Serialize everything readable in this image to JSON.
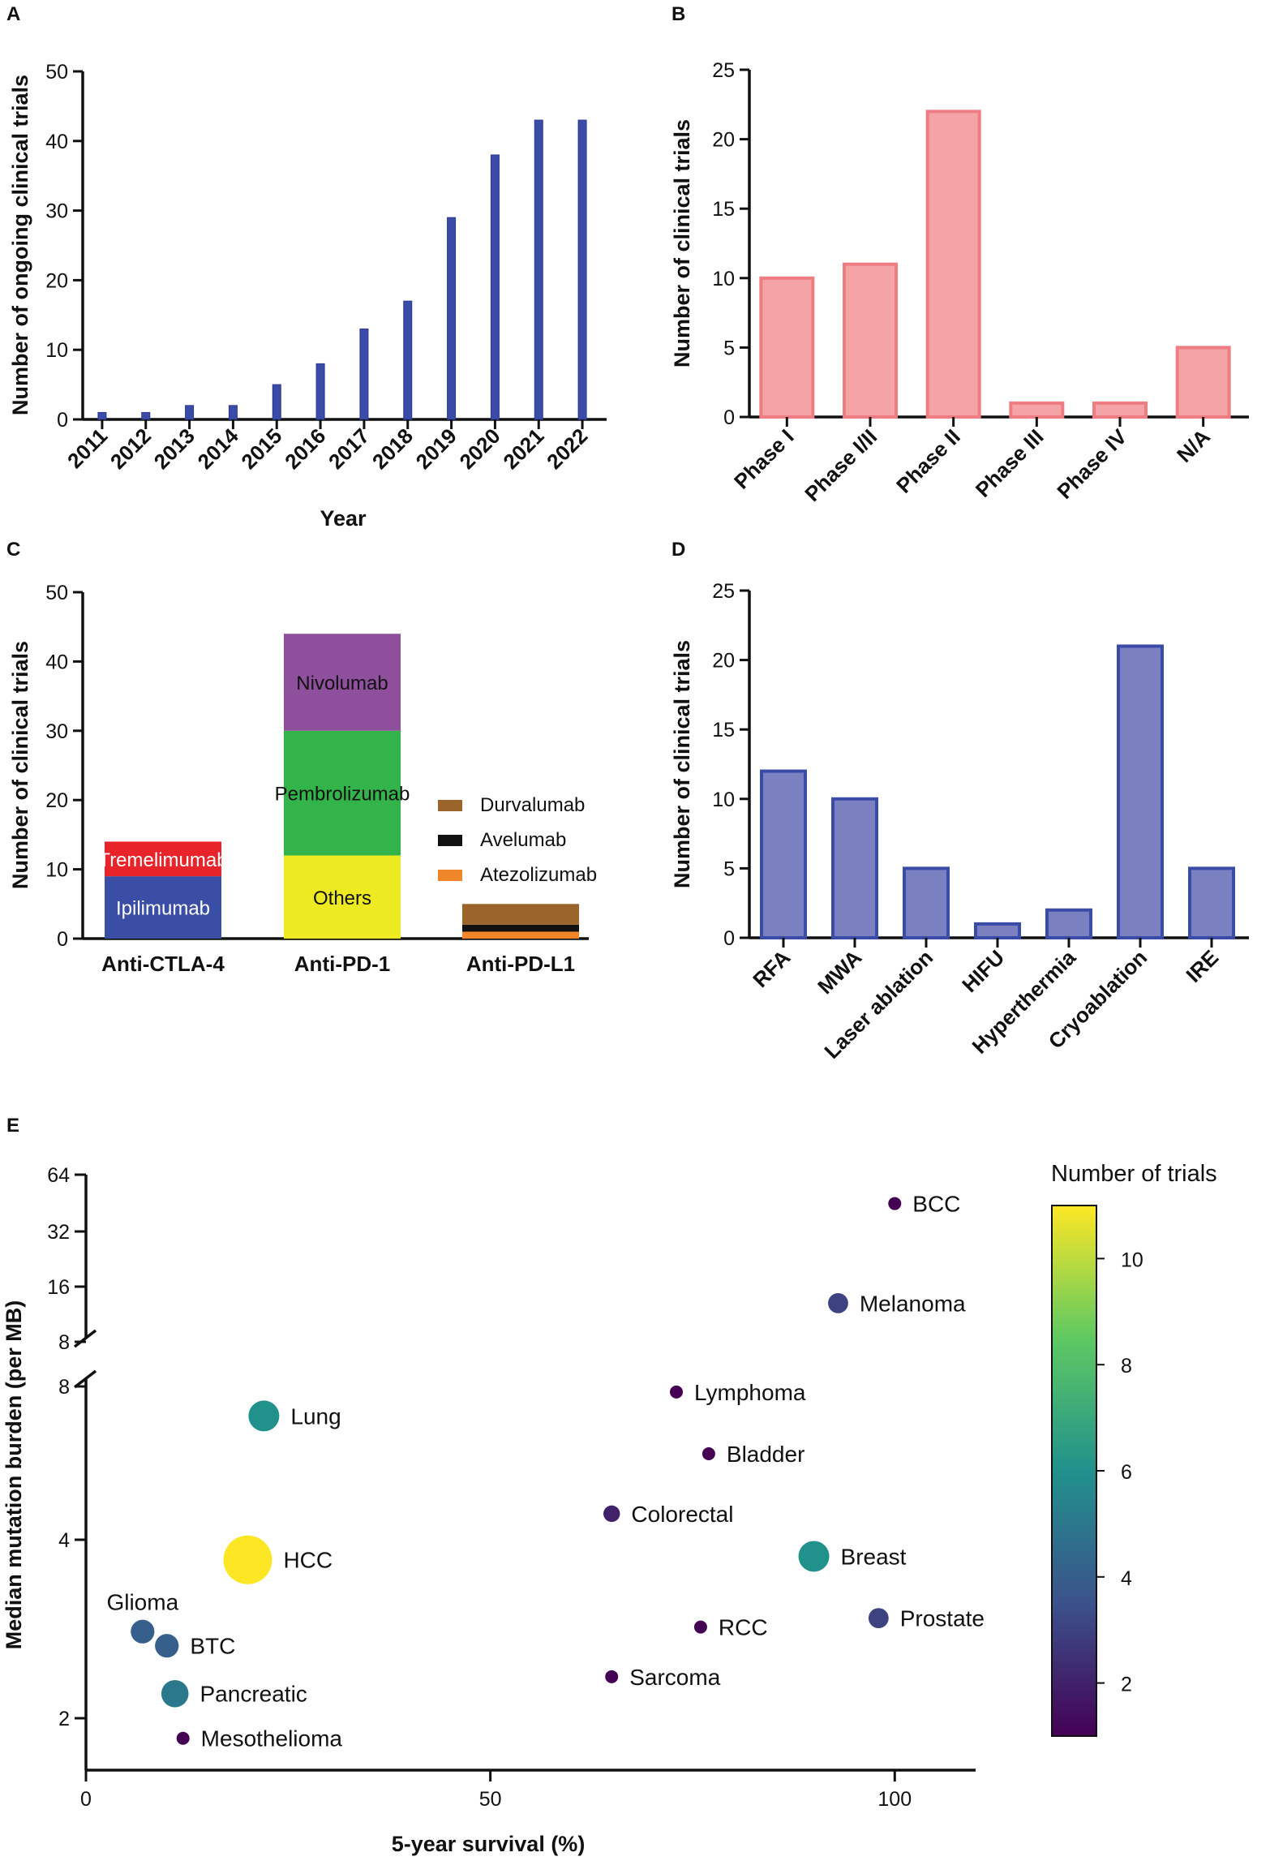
{
  "panels": {
    "a": "A",
    "b": "B",
    "c": "C",
    "d": "D",
    "e": "E"
  },
  "chart_data": [
    {
      "id": "A",
      "type": "bar",
      "title": "",
      "xlabel": "Year",
      "ylabel": "Number of ongoing clinical trials",
      "categories": [
        "2011",
        "2012",
        "2013",
        "2014",
        "2015",
        "2016",
        "2017",
        "2018",
        "2019",
        "2020",
        "2021",
        "2022"
      ],
      "values": [
        1,
        1,
        2,
        2,
        5,
        8,
        13,
        17,
        29,
        38,
        43,
        43
      ],
      "ylim": [
        0,
        50
      ],
      "yticks": [
        "0",
        "10",
        "20",
        "30",
        "40",
        "50"
      ],
      "color": "#3a4ba8"
    },
    {
      "id": "B",
      "type": "bar",
      "title": "",
      "xlabel": "",
      "ylabel": "Number of clinical trials",
      "categories": [
        "Phase I",
        "Phase I/II",
        "Phase II",
        "Phase III",
        "Phase IV",
        "N/A"
      ],
      "values": [
        10,
        11,
        22,
        1,
        1,
        5
      ],
      "ylim": [
        0,
        25
      ],
      "yticks": [
        "0",
        "5",
        "10",
        "15",
        "20",
        "25"
      ],
      "color": "#f4a3a6",
      "edge_color": "#ee7d83"
    },
    {
      "id": "C",
      "type": "bar",
      "stacked": true,
      "title": "",
      "xlabel": "",
      "ylabel": "Number of clinical trials",
      "categories": [
        "Anti-CTLA-4",
        "Anti-PD-1",
        "Anti-PD-L1"
      ],
      "ylim": [
        0,
        50
      ],
      "yticks": [
        "0",
        "10",
        "20",
        "30",
        "40",
        "50"
      ],
      "stacks": [
        {
          "category": "Anti-CTLA-4",
          "segments": [
            {
              "name": "Ipilimumab",
              "value": 9,
              "color": "#3b4ea5",
              "label_color": "white"
            },
            {
              "name": "Tremelimumab",
              "value": 5,
              "color": "#e8232a",
              "label_color": "white"
            }
          ]
        },
        {
          "category": "Anti-PD-1",
          "segments": [
            {
              "name": "Others",
              "value": 12,
              "color": "#eeea22",
              "label_color": "black"
            },
            {
              "name": "Pembrolizumab",
              "value": 18,
              "color": "#32b44a",
              "label_color": "black"
            },
            {
              "name": "Nivolumab",
              "value": 14,
              "color": "#8e4f9d",
              "label_color": "black"
            }
          ]
        },
        {
          "category": "Anti-PD-L1",
          "segments": [
            {
              "name": "Atezolizumab",
              "value": 1,
              "color": "#f0862a"
            },
            {
              "name": "Avelumab",
              "value": 1,
              "color": "#111111"
            },
            {
              "name": "Durvalumab",
              "value": 3,
              "color": "#9a642b"
            }
          ]
        }
      ],
      "legend": [
        "Durvalumab",
        "Avelumab",
        "Atezolizumab"
      ],
      "legend_colors": [
        "#9a642b",
        "#111111",
        "#f0862a"
      ]
    },
    {
      "id": "D",
      "type": "bar",
      "title": "",
      "xlabel": "",
      "ylabel": "Number of clinical trials",
      "categories": [
        "RFA",
        "MWA",
        "Laser ablation",
        "HIFU",
        "Hyperthermia",
        "Cryoablation",
        "IRE"
      ],
      "values": [
        12,
        10,
        5,
        1,
        2,
        21,
        5
      ],
      "ylim": [
        0,
        25
      ],
      "yticks": [
        "0",
        "5",
        "10",
        "15",
        "20",
        "25"
      ],
      "color": "#7b80c0",
      "edge_color": "#3a4ba8"
    },
    {
      "id": "E",
      "type": "scatter",
      "title": "",
      "xlabel": "5-year survival (%)",
      "ylabel": "Median mutation burden (per MB)",
      "xlim": [
        0,
        110
      ],
      "xticks": [
        "0",
        "50",
        "100"
      ],
      "yscale": "log2 with axis break",
      "yticks_lower": [
        "2",
        "4",
        "8"
      ],
      "yticks_upper": [
        "8",
        "16",
        "32",
        "64"
      ],
      "colorbar": {
        "title": "Number of trials",
        "ticks": [
          "2",
          "4",
          "6",
          "8",
          "10"
        ],
        "range": [
          1,
          11
        ]
      },
      "points": [
        {
          "name": "BCC",
          "x": 100,
          "y": 45,
          "trials": 1
        },
        {
          "name": "Melanoma",
          "x": 93,
          "y": 13,
          "trials": 3
        },
        {
          "name": "Lymphoma",
          "x": 73,
          "y": 7.8,
          "trials": 1
        },
        {
          "name": "Lung",
          "x": 22,
          "y": 7.0,
          "trials": 6
        },
        {
          "name": "Bladder",
          "x": 77,
          "y": 5.9,
          "trials": 1
        },
        {
          "name": "Colorectal",
          "x": 65,
          "y": 4.5,
          "trials": 2
        },
        {
          "name": "Breast",
          "x": 90,
          "y": 3.75,
          "trials": 6
        },
        {
          "name": "HCC",
          "x": 20,
          "y": 3.7,
          "trials": 11
        },
        {
          "name": "Prostate",
          "x": 98,
          "y": 2.95,
          "trials": 3
        },
        {
          "name": "RCC",
          "x": 76,
          "y": 2.85,
          "trials": 1
        },
        {
          "name": "Glioma",
          "x": 7,
          "y": 2.8,
          "trials": 4
        },
        {
          "name": "BTC",
          "x": 10,
          "y": 2.65,
          "trials": 4
        },
        {
          "name": "Sarcoma",
          "x": 65,
          "y": 2.35,
          "trials": 1
        },
        {
          "name": "Pancreatic",
          "x": 11,
          "y": 2.2,
          "trials": 5
        },
        {
          "name": "Mesothelioma",
          "x": 12,
          "y": 1.85,
          "trials": 1
        }
      ]
    }
  ]
}
